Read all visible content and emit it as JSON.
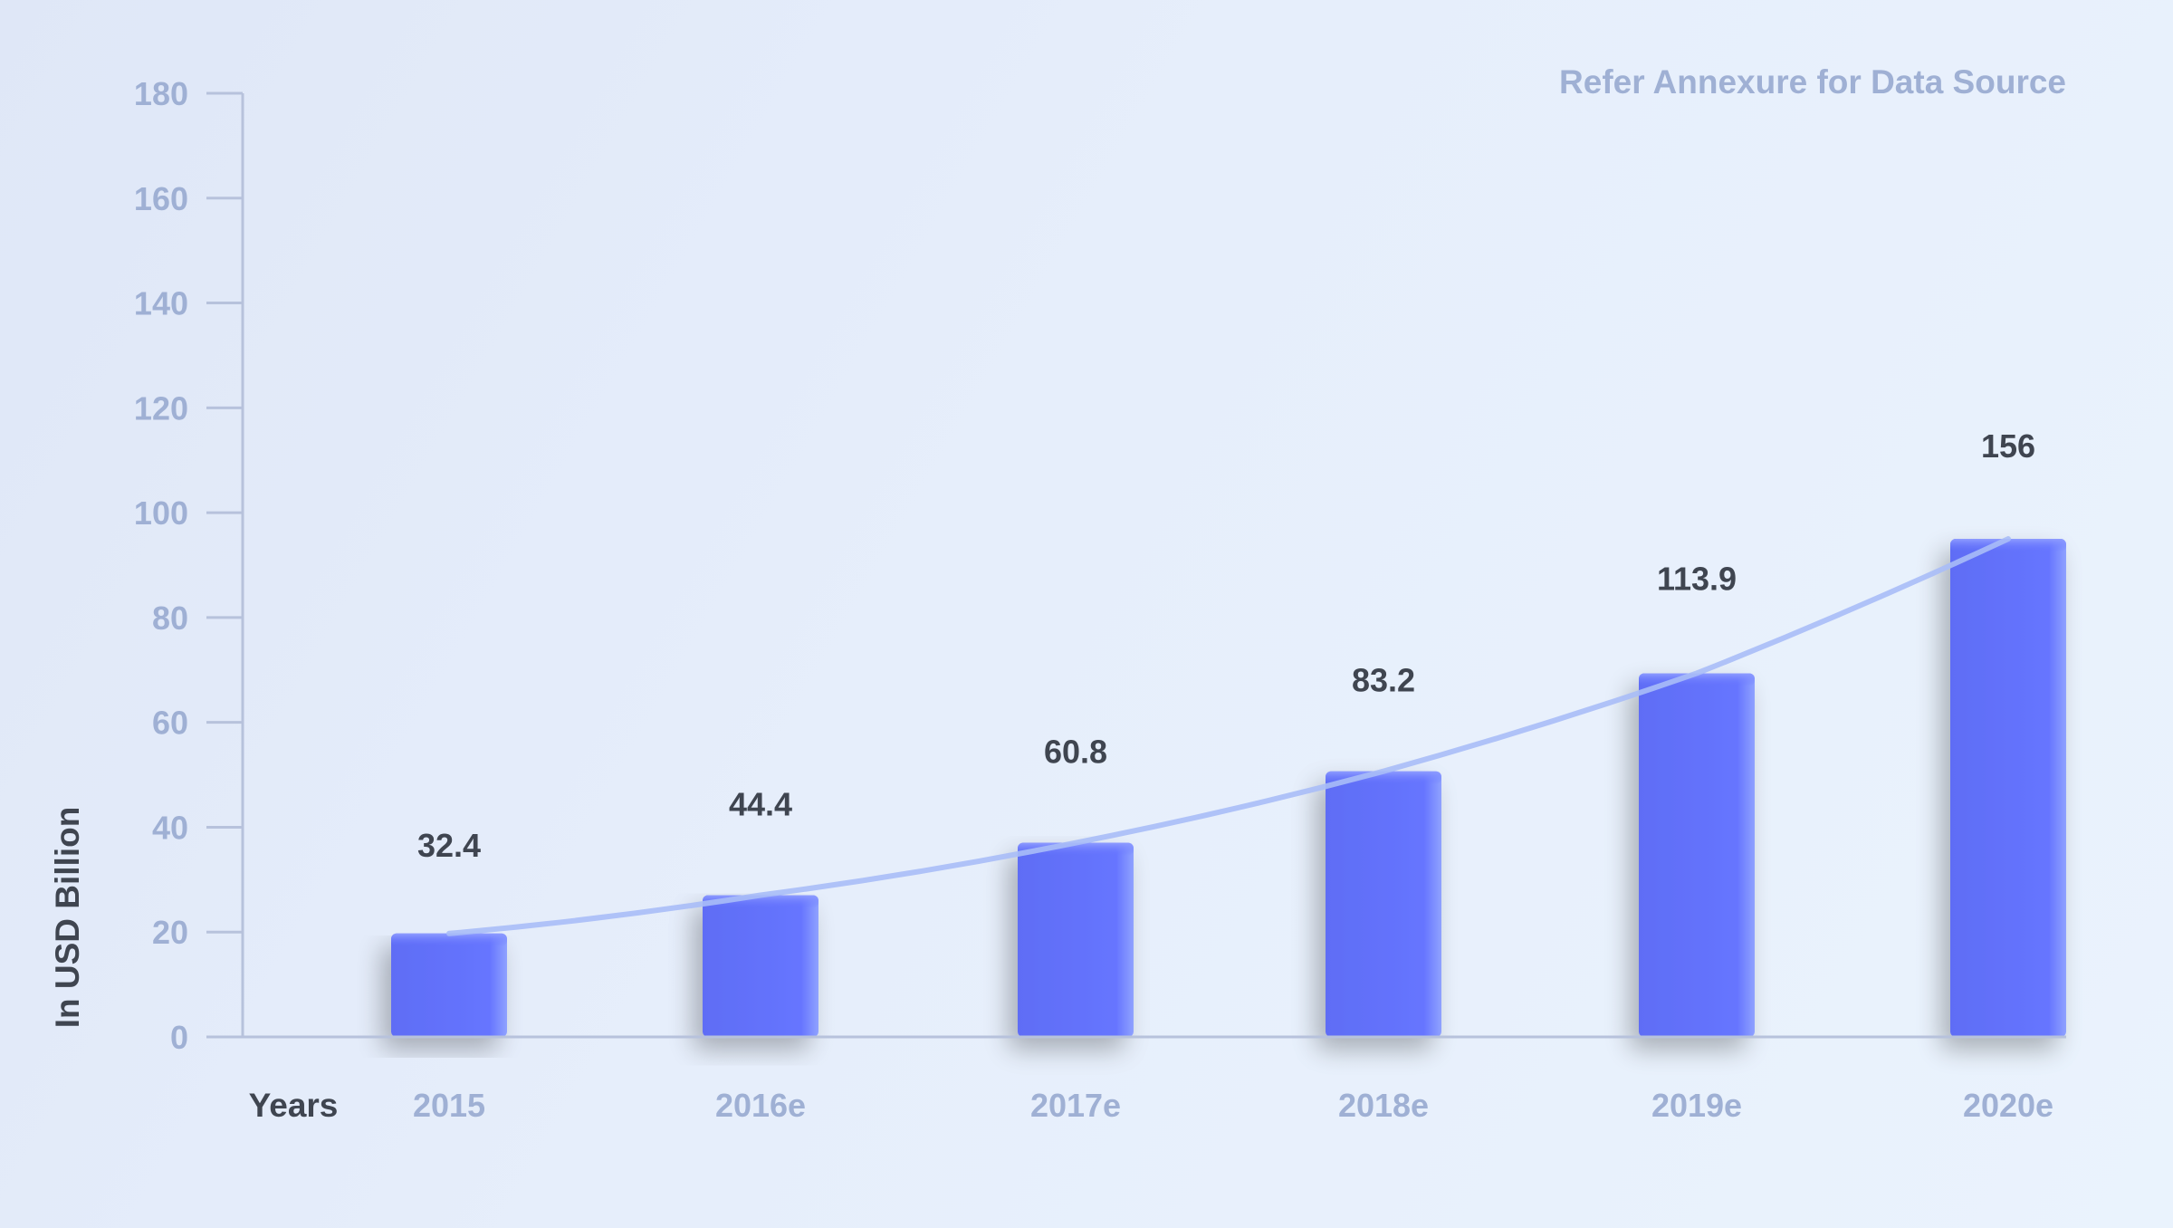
{
  "chart_data": {
    "type": "bar",
    "categories": [
      "2015",
      "2016e",
      "2017e",
      "2018e",
      "2019e",
      "2020e"
    ],
    "values": [
      32.4,
      44.4,
      60.8,
      83.2,
      113.9,
      156
    ],
    "xlabel": "Years",
    "ylabel": "In USD Billion",
    "ylim": [
      0,
      180
    ],
    "yticks": [
      0,
      20,
      40,
      60,
      80,
      100,
      120,
      140,
      160,
      180
    ],
    "note": "Refer Annexure for Data Source",
    "trend_line": true,
    "grid": false,
    "colors": {
      "bar": "#6675ff",
      "trend": "#a9bdf7",
      "axis": "#b7c2dc",
      "tick_text": "#9fb0d4",
      "value_text": "#3f4550"
    }
  }
}
